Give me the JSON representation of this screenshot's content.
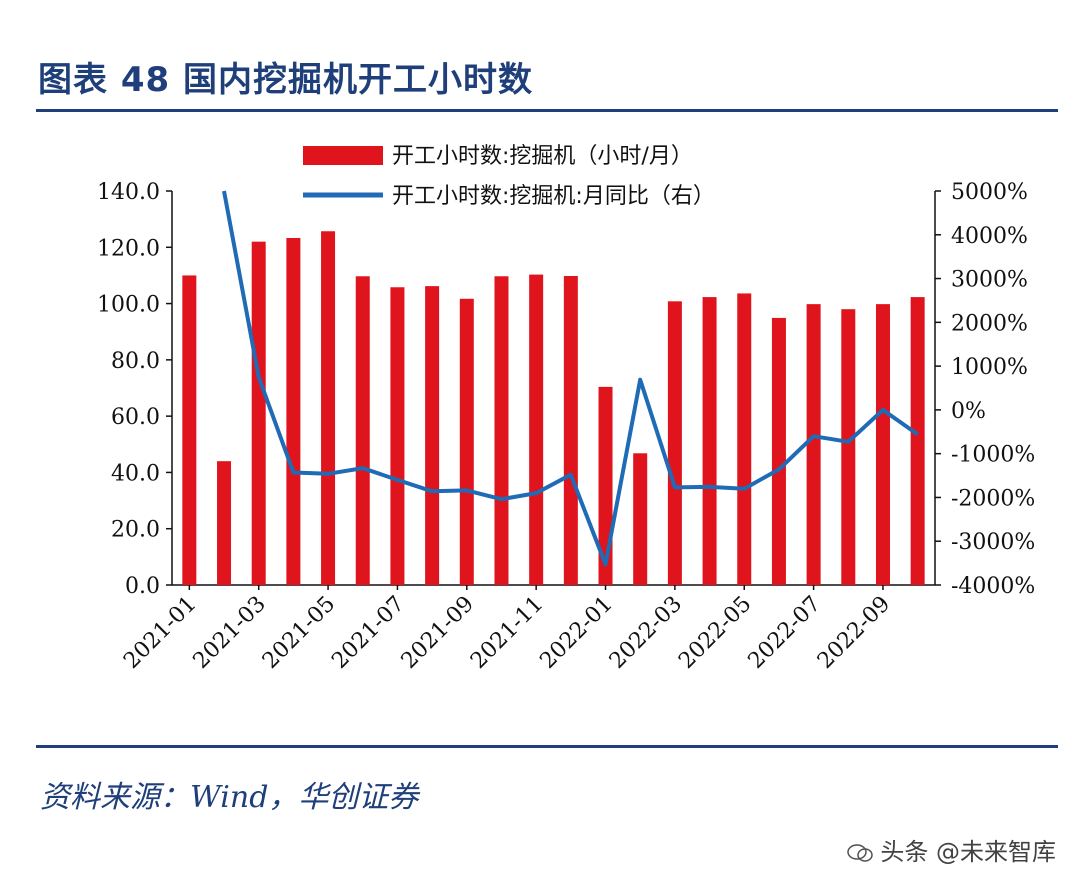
{
  "figure": {
    "title": "图表 48  国内挖掘机开工小时数",
    "source": "资料来源：Wind，华创证券",
    "watermark": "头条 @未来智库"
  },
  "colors": {
    "bar": "#e0141c",
    "line": "#1f6bb5",
    "title": "#1f3f7a"
  },
  "chart_data": {
    "type": "bar",
    "title": "",
    "legend": {
      "placement": "top",
      "items": [
        "开工小时数:挖掘机（小时/月）",
        "开工小时数:挖掘机:月同比（右）"
      ]
    },
    "categories": [
      "2021-01",
      "2021-02",
      "2021-03",
      "2021-04",
      "2021-05",
      "2021-06",
      "2021-07",
      "2021-08",
      "2021-09",
      "2021-10",
      "2021-11",
      "2021-12",
      "2022-01",
      "2022-02",
      "2022-03",
      "2022-04",
      "2022-05",
      "2022-06",
      "2022-07",
      "2022-08",
      "2022-09",
      "2022-10"
    ],
    "x_tick_labels": [
      "2021-01",
      "2021-03",
      "2021-05",
      "2021-07",
      "2021-09",
      "2021-11",
      "2022-01",
      "2022-03",
      "2022-05",
      "2022-07",
      "2022-09"
    ],
    "series": [
      {
        "name": "开工小时数:挖掘机（小时/月）",
        "axis": "left",
        "type": "bar",
        "values": [
          110,
          44,
          122,
          123.3,
          125.7,
          109.7,
          105.8,
          106.2,
          101.7,
          109.7,
          110.3,
          109.8,
          70.4,
          46.8,
          100.8,
          102.3,
          103.6,
          94.9,
          99.8,
          98.0,
          99.8,
          102.3
        ]
      },
      {
        "name": "开工小时数:挖掘机:月同比（右）",
        "axis": "right",
        "type": "line",
        "values": [
          null,
          5000,
          750,
          -1430,
          -1460,
          -1330,
          -1600,
          -1860,
          -1840,
          -2040,
          -1900,
          -1480,
          -3530,
          690,
          -1770,
          -1760,
          -1800,
          -1360,
          -600,
          -730,
          0,
          -560
        ]
      }
    ],
    "y_left": {
      "min": 0,
      "max": 140,
      "ticks": [
        "140.0",
        "120.0",
        "100.0",
        "80.0",
        "60.0",
        "40.0",
        "20.0",
        "0.0"
      ]
    },
    "y_right": {
      "min": -4000,
      "max": 5000,
      "ticks": [
        "5000%",
        "4000%",
        "3000%",
        "2000%",
        "1000%",
        "0%",
        "-1000%",
        "-2000%",
        "-3000%",
        "-4000%"
      ]
    },
    "grid": false
  }
}
